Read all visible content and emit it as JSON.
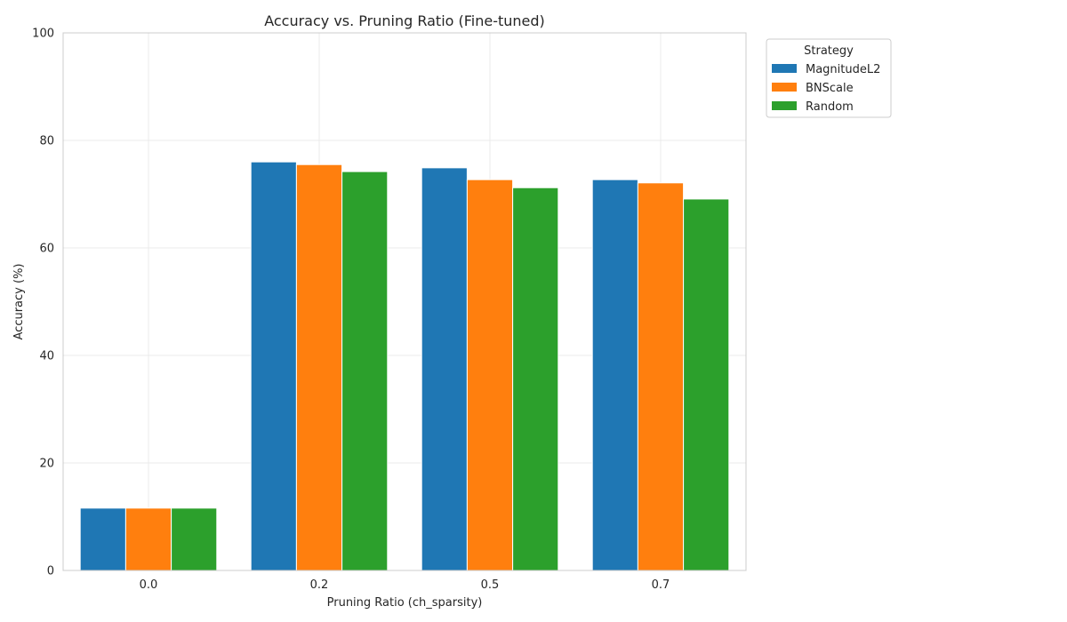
{
  "chart_data": {
    "type": "bar",
    "title": "Accuracy vs. Pruning Ratio (Fine-tuned)",
    "xlabel": "Pruning Ratio (ch_sparsity)",
    "ylabel": "Accuracy (%)",
    "categories": [
      "0.0",
      "0.2",
      "0.5",
      "0.7"
    ],
    "ylim": [
      0,
      100
    ],
    "yticks": [
      "0",
      "20",
      "40",
      "60",
      "80",
      "100"
    ],
    "grid": true,
    "legend": {
      "title": "Strategy",
      "placement": "outside-top-right"
    },
    "series": [
      {
        "name": "MagnitudeL2",
        "color": "#1f77b4",
        "values": [
          11.6,
          76.0,
          74.9,
          72.7
        ]
      },
      {
        "name": "BNScale",
        "color": "#ff7f0e",
        "values": [
          11.6,
          75.5,
          72.7,
          72.1
        ]
      },
      {
        "name": "Random",
        "color": "#2ca02c",
        "values": [
          11.6,
          74.2,
          71.2,
          69.1
        ]
      }
    ]
  }
}
